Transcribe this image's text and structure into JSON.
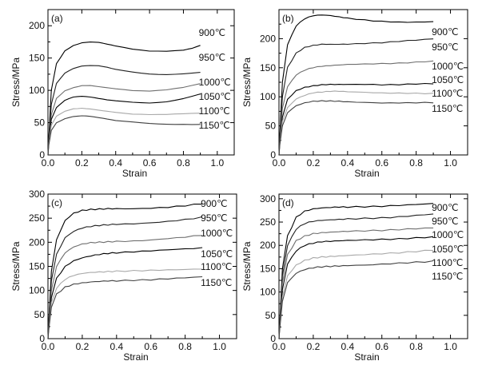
{
  "chart_data": [
    {
      "panel": "(a)",
      "type": "line",
      "xlabel": "Strain",
      "ylabel": "Stress/MPa",
      "xlim": [
        0,
        1.1
      ],
      "ylim": [
        0,
        225
      ],
      "xticks": [
        0.0,
        0.2,
        0.4,
        0.6,
        0.8,
        1.0
      ],
      "xtick_labels": [
        "0.0",
        "0.2",
        "0.4",
        "0.6",
        "0.8",
        "1.0"
      ],
      "yticks": [
        0,
        50,
        100,
        150,
        200
      ],
      "ytick_labels": [
        "0",
        "50",
        "100",
        "150",
        "200"
      ],
      "series": [
        {
          "name": "900℃",
          "color": "#000000",
          "x": [
            0,
            0.005,
            0.02,
            0.05,
            0.1,
            0.15,
            0.2,
            0.25,
            0.3,
            0.35,
            0.4,
            0.5,
            0.6,
            0.7,
            0.8,
            0.85,
            0.9
          ],
          "y": [
            0,
            28,
            100,
            142,
            162,
            170,
            174,
            175,
            174,
            171,
            168,
            163,
            160,
            160,
            162,
            165,
            170
          ]
        },
        {
          "name": "950℃",
          "color": "#202020",
          "x": [
            0,
            0.005,
            0.02,
            0.05,
            0.1,
            0.15,
            0.2,
            0.25,
            0.3,
            0.35,
            0.4,
            0.5,
            0.6,
            0.7,
            0.8,
            0.9
          ],
          "y": [
            0,
            25,
            78,
            110,
            126,
            133,
            137,
            138,
            138,
            136,
            133,
            129,
            126,
            125,
            126,
            128
          ]
        },
        {
          "name": "1000℃",
          "color": "#6e6e6e",
          "x": [
            0,
            0.005,
            0.02,
            0.05,
            0.1,
            0.15,
            0.2,
            0.25,
            0.3,
            0.35,
            0.4,
            0.5,
            0.6,
            0.7,
            0.8,
            0.9
          ],
          "y": [
            0,
            22,
            62,
            88,
            100,
            105,
            108,
            108,
            106,
            104,
            102,
            99,
            98,
            100,
            104,
            110
          ]
        },
        {
          "name": "1050℃",
          "color": "#000000",
          "x": [
            0,
            0.005,
            0.02,
            0.05,
            0.1,
            0.15,
            0.2,
            0.25,
            0.3,
            0.35,
            0.4,
            0.5,
            0.6,
            0.7,
            0.8,
            0.9
          ],
          "y": [
            0,
            20,
            55,
            73,
            84,
            89,
            90,
            89,
            87,
            85,
            84,
            82,
            81,
            83,
            88,
            95
          ]
        },
        {
          "name": "1100℃",
          "color": "#a8a8a8",
          "x": [
            0,
            0.005,
            0.02,
            0.05,
            0.1,
            0.15,
            0.2,
            0.25,
            0.3,
            0.35,
            0.4,
            0.5,
            0.6,
            0.7,
            0.8,
            0.9
          ],
          "y": [
            0,
            18,
            46,
            60,
            68,
            72,
            73,
            72,
            70,
            68,
            66,
            63,
            62,
            62,
            63,
            64
          ]
        },
        {
          "name": "1150℃",
          "color": "#404040",
          "x": [
            0,
            0.005,
            0.02,
            0.05,
            0.1,
            0.15,
            0.2,
            0.25,
            0.3,
            0.35,
            0.4,
            0.5,
            0.6,
            0.7,
            0.8,
            0.9
          ],
          "y": [
            0,
            16,
            38,
            50,
            56,
            59,
            60,
            59,
            57,
            55,
            53,
            51,
            49,
            48,
            48,
            48
          ]
        }
      ]
    },
    {
      "panel": "(b)",
      "type": "line",
      "xlabel": "Strain",
      "ylabel": "Stress/MPa",
      "xlim": [
        0,
        1.1
      ],
      "ylim": [
        0,
        250
      ],
      "xticks": [
        0.0,
        0.2,
        0.4,
        0.6,
        0.8,
        1.0
      ],
      "xtick_labels": [
        "0.0",
        "0.2",
        "0.4",
        "0.6",
        "0.8",
        "1.0"
      ],
      "yticks": [
        0,
        50,
        100,
        150,
        200
      ],
      "ytick_labels": [
        "0",
        "50",
        "100",
        "150",
        "200"
      ],
      "series": [
        {
          "name": "900℃",
          "color": "#000000",
          "x": [
            0,
            0.005,
            0.02,
            0.05,
            0.1,
            0.15,
            0.2,
            0.25,
            0.3,
            0.35,
            0.4,
            0.5,
            0.6,
            0.7,
            0.8,
            0.9
          ],
          "y": [
            0,
            35,
            125,
            190,
            222,
            234,
            239,
            240,
            239,
            237,
            235,
            232,
            230,
            229,
            229,
            230
          ]
        },
        {
          "name": "950℃",
          "color": "#202020",
          "x": [
            0,
            0.005,
            0.02,
            0.05,
            0.1,
            0.15,
            0.2,
            0.25,
            0.3,
            0.35,
            0.4,
            0.5,
            0.6,
            0.7,
            0.8,
            0.9
          ],
          "y": [
            0,
            30,
            100,
            150,
            175,
            185,
            189,
            191,
            191,
            191,
            191,
            192,
            193,
            195,
            197,
            199
          ]
        },
        {
          "name": "1000℃",
          "color": "#6e6e6e",
          "x": [
            0,
            0.005,
            0.02,
            0.05,
            0.1,
            0.15,
            0.2,
            0.25,
            0.3,
            0.35,
            0.4,
            0.5,
            0.6,
            0.7,
            0.8,
            0.9
          ],
          "y": [
            0,
            25,
            80,
            118,
            138,
            146,
            150,
            152,
            153,
            154,
            155,
            156,
            157,
            158,
            160,
            162
          ]
        },
        {
          "name": "1050℃",
          "color": "#000000",
          "x": [
            0,
            0.005,
            0.02,
            0.05,
            0.1,
            0.15,
            0.2,
            0.25,
            0.3,
            0.35,
            0.4,
            0.5,
            0.6,
            0.7,
            0.8,
            0.9
          ],
          "y": [
            0,
            22,
            65,
            95,
            110,
            116,
            119,
            121,
            122,
            122,
            122,
            122,
            121,
            121,
            122,
            122
          ]
        },
        {
          "name": "1100℃",
          "color": "#a8a8a8",
          "x": [
            0,
            0.005,
            0.02,
            0.05,
            0.1,
            0.15,
            0.2,
            0.25,
            0.3,
            0.35,
            0.4,
            0.5,
            0.6,
            0.7,
            0.8,
            0.9
          ],
          "y": [
            0,
            20,
            58,
            82,
            97,
            103,
            107,
            108,
            109,
            109,
            108,
            107,
            106,
            106,
            106,
            106
          ]
        },
        {
          "name": "1150℃",
          "color": "#404040",
          "x": [
            0,
            0.005,
            0.02,
            0.05,
            0.1,
            0.15,
            0.2,
            0.25,
            0.3,
            0.35,
            0.4,
            0.5,
            0.6,
            0.7,
            0.8,
            0.9
          ],
          "y": [
            0,
            18,
            50,
            72,
            84,
            89,
            92,
            93,
            93,
            93,
            92,
            91,
            90,
            90,
            90,
            90
          ]
        }
      ]
    },
    {
      "panel": "(c)",
      "type": "line",
      "xlabel": "Strain",
      "ylabel": "Stress/MPa",
      "xlim": [
        0,
        1.1
      ],
      "ylim": [
        0,
        300
      ],
      "xticks": [
        0.0,
        0.2,
        0.4,
        0.6,
        0.8,
        1.0
      ],
      "xtick_labels": [
        "0.0",
        "0.2",
        "0.4",
        "0.6",
        "0.8",
        "1.0"
      ],
      "yticks": [
        0,
        50,
        100,
        150,
        200,
        250,
        300
      ],
      "ytick_labels": [
        "0",
        "50",
        "100",
        "150",
        "200",
        "250",
        "300"
      ],
      "series": [
        {
          "name": "900℃",
          "color": "#000000",
          "x": [
            0,
            0.005,
            0.02,
            0.05,
            0.1,
            0.15,
            0.2,
            0.25,
            0.3,
            0.35,
            0.4,
            0.5,
            0.6,
            0.7,
            0.8,
            0.9
          ],
          "y": [
            0,
            40,
            140,
            205,
            245,
            260,
            266,
            268,
            269,
            270,
            270,
            270,
            271,
            273,
            276,
            280
          ]
        },
        {
          "name": "950℃",
          "color": "#202020",
          "x": [
            0,
            0.005,
            0.02,
            0.05,
            0.1,
            0.15,
            0.2,
            0.25,
            0.3,
            0.35,
            0.4,
            0.5,
            0.6,
            0.7,
            0.8,
            0.9
          ],
          "y": [
            0,
            35,
            120,
            175,
            210,
            223,
            230,
            233,
            235,
            236,
            237,
            238,
            240,
            243,
            247,
            252
          ]
        },
        {
          "name": "1000℃",
          "color": "#6e6e6e",
          "x": [
            0,
            0.005,
            0.02,
            0.05,
            0.1,
            0.15,
            0.2,
            0.25,
            0.3,
            0.35,
            0.4,
            0.5,
            0.6,
            0.7,
            0.8,
            0.9
          ],
          "y": [
            0,
            30,
            100,
            150,
            178,
            190,
            196,
            199,
            200,
            201,
            202,
            203,
            205,
            208,
            211,
            215
          ]
        },
        {
          "name": "1050℃",
          "color": "#000000",
          "x": [
            0,
            0.005,
            0.02,
            0.05,
            0.1,
            0.15,
            0.2,
            0.25,
            0.3,
            0.35,
            0.4,
            0.5,
            0.6,
            0.7,
            0.8,
            0.9
          ],
          "y": [
            0,
            25,
            85,
            125,
            150,
            162,
            168,
            172,
            175,
            177,
            178,
            180,
            182,
            184,
            186,
            188
          ]
        },
        {
          "name": "1100℃",
          "color": "#a8a8a8",
          "x": [
            0,
            0.005,
            0.02,
            0.05,
            0.1,
            0.15,
            0.2,
            0.25,
            0.3,
            0.35,
            0.4,
            0.5,
            0.6,
            0.7,
            0.8,
            0.9
          ],
          "y": [
            0,
            22,
            75,
            105,
            123,
            131,
            135,
            137,
            138,
            139,
            140,
            141,
            142,
            143,
            144,
            145
          ]
        },
        {
          "name": "1150℃",
          "color": "#404040",
          "x": [
            0,
            0.005,
            0.02,
            0.05,
            0.1,
            0.15,
            0.2,
            0.25,
            0.3,
            0.35,
            0.4,
            0.5,
            0.6,
            0.7,
            0.8,
            0.9
          ],
          "y": [
            0,
            20,
            65,
            92,
            107,
            113,
            116,
            118,
            119,
            120,
            120,
            121,
            122,
            124,
            126,
            128
          ]
        }
      ]
    },
    {
      "panel": "(d)",
      "type": "line",
      "xlabel": "Strain",
      "ylabel": "Stress/MPa",
      "xlim": [
        0,
        1.1
      ],
      "ylim": [
        0,
        310
      ],
      "xticks": [
        0.0,
        0.2,
        0.4,
        0.6,
        0.8,
        1.0
      ],
      "xtick_labels": [
        "0.0",
        "0.2",
        "0.4",
        "0.6",
        "0.8",
        "1.0"
      ],
      "yticks": [
        0,
        50,
        100,
        150,
        200,
        250,
        300
      ],
      "ytick_labels": [
        "0",
        "50",
        "100",
        "150",
        "200",
        "250",
        "300"
      ],
      "series": [
        {
          "name": "900℃",
          "color": "#000000",
          "x": [
            0,
            0.005,
            0.02,
            0.05,
            0.1,
            0.15,
            0.2,
            0.25,
            0.3,
            0.35,
            0.4,
            0.5,
            0.6,
            0.7,
            0.8,
            0.9
          ],
          "y": [
            0,
            40,
            150,
            220,
            260,
            273,
            278,
            280,
            281,
            282,
            282,
            283,
            284,
            286,
            288,
            290
          ]
        },
        {
          "name": "950℃",
          "color": "#202020",
          "x": [
            0,
            0.005,
            0.02,
            0.05,
            0.1,
            0.15,
            0.2,
            0.25,
            0.3,
            0.35,
            0.4,
            0.5,
            0.6,
            0.7,
            0.8,
            0.9
          ],
          "y": [
            0,
            37,
            135,
            200,
            235,
            247,
            252,
            254,
            255,
            256,
            257,
            258,
            259,
            261,
            264,
            267
          ]
        },
        {
          "name": "1000℃",
          "color": "#6e6e6e",
          "x": [
            0,
            0.005,
            0.02,
            0.05,
            0.1,
            0.15,
            0.2,
            0.25,
            0.3,
            0.35,
            0.4,
            0.5,
            0.6,
            0.7,
            0.8,
            0.9
          ],
          "y": [
            0,
            34,
            120,
            180,
            210,
            220,
            225,
            227,
            228,
            229,
            230,
            231,
            232,
            234,
            236,
            238
          ]
        },
        {
          "name": "1050℃",
          "color": "#000000",
          "x": [
            0,
            0.005,
            0.02,
            0.05,
            0.1,
            0.15,
            0.2,
            0.25,
            0.3,
            0.35,
            0.4,
            0.5,
            0.6,
            0.7,
            0.8,
            0.9
          ],
          "y": [
            0,
            30,
            105,
            160,
            188,
            200,
            205,
            208,
            209,
            210,
            211,
            212,
            213,
            214,
            216,
            218
          ]
        },
        {
          "name": "1100℃",
          "color": "#a8a8a8",
          "x": [
            0,
            0.005,
            0.02,
            0.05,
            0.1,
            0.15,
            0.2,
            0.25,
            0.3,
            0.35,
            0.4,
            0.5,
            0.6,
            0.7,
            0.8,
            0.9
          ],
          "y": [
            0,
            26,
            90,
            135,
            158,
            168,
            173,
            175,
            176,
            177,
            178,
            180,
            182,
            184,
            187,
            190
          ]
        },
        {
          "name": "1150℃",
          "color": "#404040",
          "x": [
            0,
            0.005,
            0.02,
            0.05,
            0.1,
            0.15,
            0.2,
            0.25,
            0.3,
            0.35,
            0.4,
            0.5,
            0.6,
            0.7,
            0.8,
            0.9
          ],
          "y": [
            0,
            23,
            80,
            120,
            140,
            148,
            152,
            154,
            155,
            156,
            157,
            158,
            160,
            162,
            164,
            166
          ]
        }
      ]
    }
  ]
}
